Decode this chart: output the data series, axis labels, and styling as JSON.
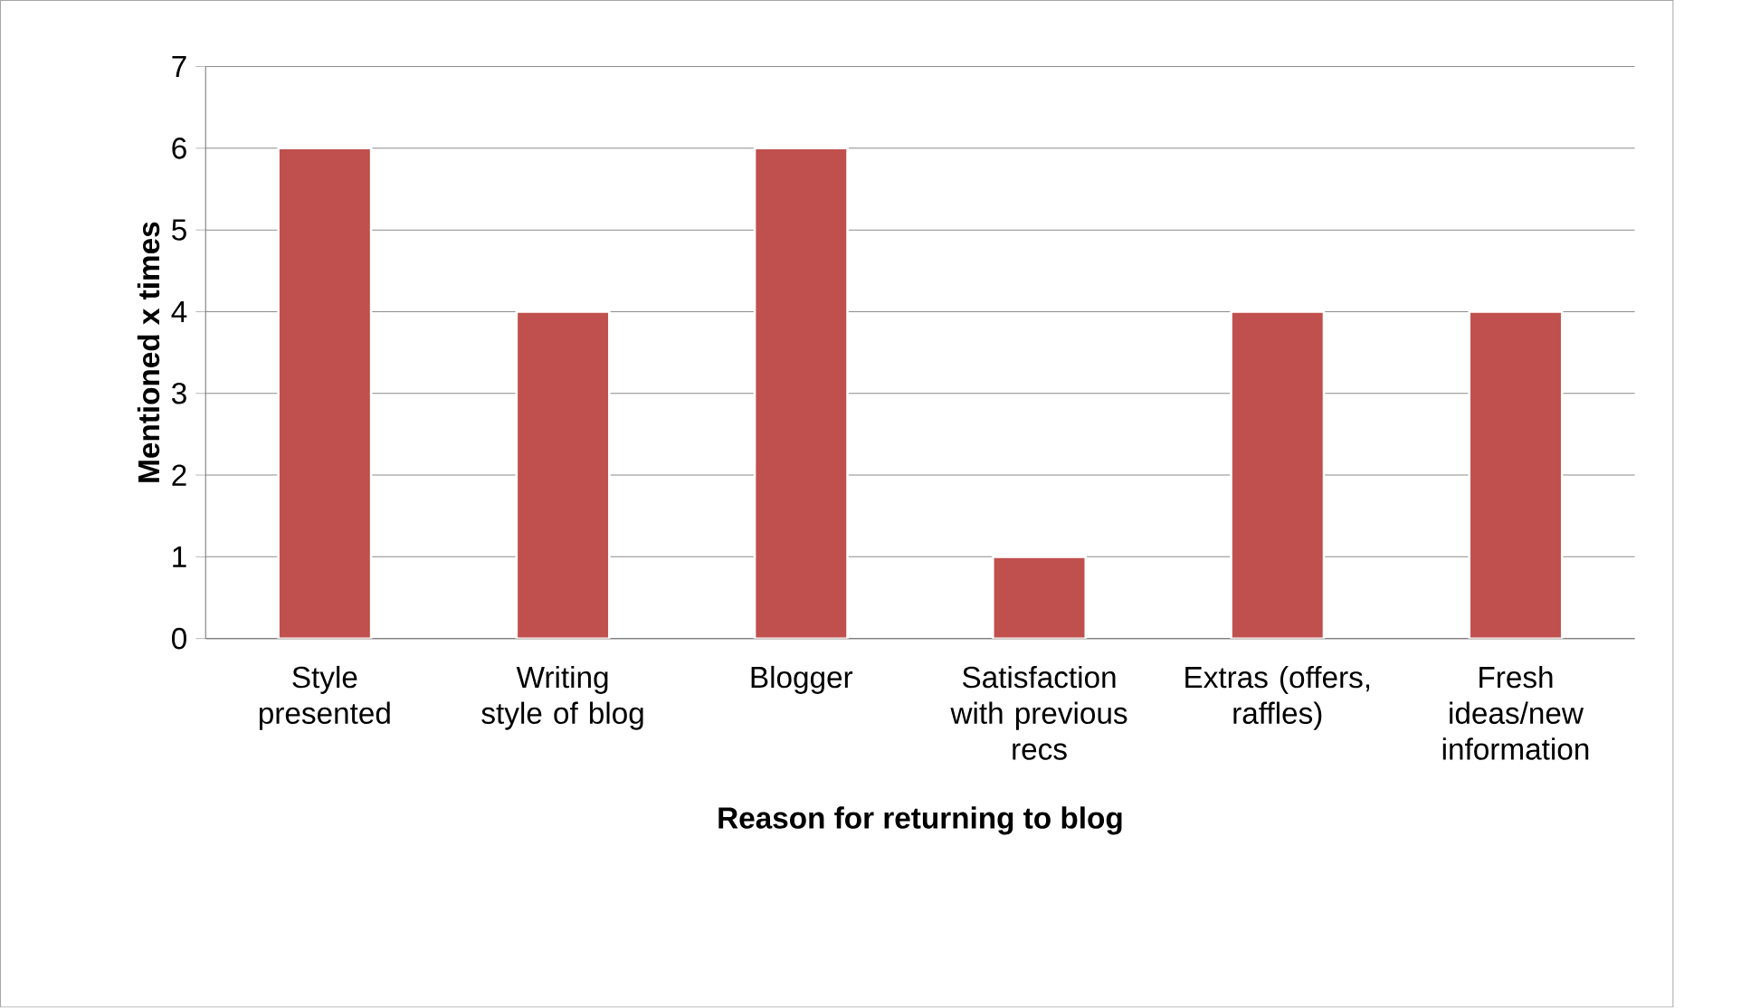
{
  "chart_data": {
    "type": "bar",
    "xlabel": "Reason for returning to blog",
    "ylabel": "Mentioned x times",
    "categories": [
      "Style presented",
      "Writing style of blog",
      "Blogger",
      "Satisfaction with previous recs",
      "Extras (offers, raffles)",
      "Fresh ideas/new information"
    ],
    "values": [
      6,
      4,
      6,
      1,
      4,
      4
    ],
    "color": "#c0504d",
    "ylim": [
      0,
      7
    ],
    "yticks": [
      0,
      1,
      2,
      3,
      4,
      5,
      6,
      7
    ],
    "grid": "y"
  }
}
